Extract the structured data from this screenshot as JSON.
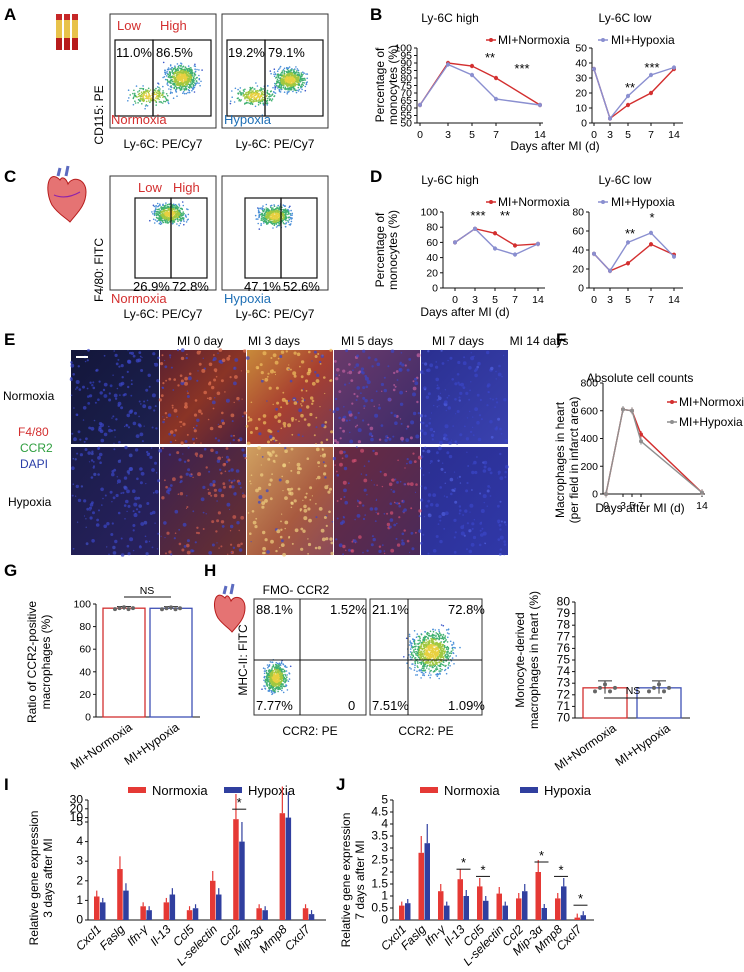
{
  "panels": {
    "A": "A",
    "B": "B",
    "C": "C",
    "D": "D",
    "E": "E",
    "F": "F",
    "G": "G",
    "H": "H",
    "I": "I",
    "J": "J"
  },
  "colors": {
    "normoxia": "#d32f2f",
    "hypoxia": "#3f51b5",
    "hypoxia_light": "#8a8fd0",
    "gray": "#8f8f8f"
  },
  "panelA": {
    "ylabel": "CD115: PE",
    "plots": [
      {
        "low_label": "Low",
        "high_label": "High",
        "low_pct": "11.0%",
        "high_pct": "86.5%",
        "condition": "Normoxia",
        "xlabel": "Ly-6C: PE/Cy7"
      },
      {
        "low_pct": "19.2%",
        "high_pct": "79.1%",
        "condition": "Hypoxia",
        "xlabel": "Ly-6C: PE/Cy7"
      }
    ]
  },
  "panelB": {
    "title_high": "Ly-6C high",
    "title_low": "Ly-6C low",
    "ylabel_line1": "Percentage of",
    "ylabel_line2": "monocytes (%)",
    "xlabel": "Days after MI (d)",
    "legend": [
      "MI+Normoxia",
      "MI+Hypoxia"
    ],
    "sig": [
      "**",
      "***",
      "**",
      "***"
    ]
  },
  "panelC": {
    "ylabel": "F4/80: FITC",
    "plots": [
      {
        "low_label": "Low",
        "high_label": "High",
        "low_pct": "26.9%",
        "high_pct": "72.8%",
        "condition": "Normoxia",
        "xlabel": "Ly-6C: PE/Cy7"
      },
      {
        "low_pct": "47.1%",
        "high_pct": "52.6%",
        "condition": "Hypoxia",
        "xlabel": "Ly-6C: PE/Cy7"
      }
    ]
  },
  "panelD": {
    "title_high": "Ly-6C high",
    "title_low": "Ly-6C low",
    "ylabel_line1": "Percentage of",
    "ylabel_line2": "monocytes (%)",
    "xlabel": "Days after MI (d)",
    "legend": [
      "MI+Normoxia",
      "MI+Hypoxia"
    ],
    "sig": [
      "***",
      "**",
      "**",
      "*"
    ]
  },
  "panelE": {
    "columns": [
      "MI 0 day",
      "MI 3 days",
      "MI 5 days",
      "MI 7 days",
      "MI 14 days"
    ],
    "rows": [
      "Normoxia",
      "Hypoxia"
    ],
    "stains": [
      "F4/80",
      "CCR2",
      "DAPI"
    ]
  },
  "panelF": {
    "title": "Absolute cell counts",
    "ylabel_line1": "Macrophages in heart",
    "ylabel_line2": "(per field in infarct area)",
    "xlabel": "Days after MI (d)",
    "legend": [
      "MI+Normoxia",
      "MI+Hypoxia"
    ]
  },
  "panelG": {
    "ylabel_line1": "Ratio of CCR2-positive",
    "ylabel_line2": "macrophages (%)",
    "sig": "NS"
  },
  "panelH": {
    "plots": [
      {
        "title": "FMO- CCR2",
        "q_tl": "88.1%",
        "q_tr": "1.52%",
        "q_bl": "7.77%",
        "q_br": "0",
        "xlabel": "CCR2: PE"
      },
      {
        "q_tl": "21.1%",
        "q_tr": "72.8%",
        "q_bl": "7.51%",
        "q_br": "1.09%",
        "xlabel": "CCR2: PE"
      }
    ],
    "ylabel": "MHC-II: FITC",
    "bar_ylabel_line1": "Monocyte-derived",
    "bar_ylabel_line2": "macrophages in heart (%)",
    "sig": "NS"
  },
  "panelI": {
    "legend": [
      "Normoxia",
      "Hypoxia"
    ],
    "ylabel_line1": "Relative gene expression",
    "ylabel_line2": "3 days after MI",
    "sig": "*"
  },
  "panelJ": {
    "legend": [
      "Normoxia",
      "Hypoxia"
    ],
    "ylabel_line1": "Relative gene expression",
    "ylabel_line2": "7 days after MI",
    "sig": "*"
  },
  "chart_data": [
    {
      "id": "B-high",
      "type": "line",
      "title": "Ly-6C high",
      "x": [
        0,
        3,
        5,
        7,
        14
      ],
      "ylim": [
        50,
        100
      ],
      "yticks": [
        50,
        55,
        60,
        65,
        70,
        75,
        80,
        85,
        90,
        95,
        100
      ],
      "series": [
        {
          "name": "MI+Normoxia",
          "values": [
            62,
            90,
            88,
            80,
            62
          ]
        },
        {
          "name": "MI+Hypoxia",
          "values": [
            62,
            89,
            82,
            66,
            62
          ]
        }
      ]
    },
    {
      "id": "B-low",
      "type": "line",
      "title": "Ly-6C low",
      "x": [
        0,
        3,
        5,
        7,
        14
      ],
      "ylim": [
        0,
        50
      ],
      "yticks": [
        0,
        10,
        20,
        30,
        40,
        50
      ],
      "series": [
        {
          "name": "MI+Normoxia",
          "values": [
            36,
            3,
            12,
            20,
            36
          ]
        },
        {
          "name": "MI+Hypoxia",
          "values": [
            36,
            3,
            18,
            32,
            37
          ]
        }
      ]
    },
    {
      "id": "D-high",
      "type": "line",
      "title": "Ly-6C high",
      "x": [
        0,
        3,
        5,
        7,
        14
      ],
      "ylim": [
        0,
        100
      ],
      "yticks": [
        0,
        20,
        40,
        60,
        80,
        100
      ],
      "series": [
        {
          "name": "MI+Normoxia",
          "values": [
            60,
            78,
            72,
            56,
            58
          ]
        },
        {
          "name": "MI+Hypoxia",
          "values": [
            60,
            78,
            52,
            44,
            58
          ]
        }
      ]
    },
    {
      "id": "D-low",
      "type": "line",
      "title": "Ly-6C low",
      "x": [
        0,
        3,
        5,
        7,
        14
      ],
      "ylim": [
        0,
        80
      ],
      "yticks": [
        0,
        20,
        40,
        60,
        80
      ],
      "series": [
        {
          "name": "MI+Normoxia",
          "values": [
            36,
            18,
            26,
            46,
            35
          ]
        },
        {
          "name": "MI+Hypoxia",
          "values": [
            36,
            18,
            48,
            58,
            33
          ]
        }
      ]
    },
    {
      "id": "F",
      "type": "line",
      "title": "Absolute cell counts",
      "x": [
        0,
        3,
        5,
        7,
        14
      ],
      "ylim": [
        0,
        800
      ],
      "yticks": [
        0,
        200,
        400,
        600,
        800
      ],
      "series": [
        {
          "name": "MI+Normoxia",
          "values": [
            0,
            610,
            600,
            430,
            10
          ]
        },
        {
          "name": "MI+Hypoxia",
          "values": [
            0,
            610,
            600,
            380,
            10
          ]
        }
      ]
    },
    {
      "id": "G",
      "type": "bar",
      "categories": [
        "MI+Normoxia",
        "MI+Hypoxia"
      ],
      "values": [
        96.3,
        96.2
      ],
      "ylim": [
        0,
        100
      ],
      "yticks": [
        0,
        20,
        40,
        60,
        80,
        100
      ]
    },
    {
      "id": "H-bar",
      "type": "bar",
      "categories": [
        "MI+Normoxia",
        "MI+Hypoxia"
      ],
      "values": [
        72.6,
        72.6
      ],
      "ylim": [
        70,
        80
      ],
      "yticks": [
        70,
        71,
        72,
        73,
        74,
        75,
        76,
        77,
        78,
        79,
        80
      ]
    },
    {
      "id": "I",
      "type": "bar",
      "categories": [
        "Cxcl1",
        "Faslg",
        "Ifn-γ",
        "Il-13",
        "Ccl5",
        "L-selectin",
        "Ccl2",
        "Mip-3α",
        "Mmp8",
        "Cxcl7"
      ],
      "yticks": [
        "0",
        "1",
        "2",
        "3",
        "4",
        "5",
        "10",
        "20",
        "30"
      ],
      "series": [
        {
          "name": "Normoxia",
          "values": [
            1.2,
            2.6,
            0.7,
            0.9,
            0.5,
            2.0,
            8.2,
            0.6,
            15,
            0.6
          ]
        },
        {
          "name": "Hypoxia",
          "values": [
            0.9,
            1.5,
            0.5,
            1.3,
            0.6,
            1.3,
            4.0,
            0.5,
            10,
            0.3
          ]
        }
      ]
    },
    {
      "id": "J",
      "type": "bar",
      "categories": [
        "Cxcl1",
        "Faslg",
        "Ifn-γ",
        "Il-13",
        "Ccl5",
        "L-selectin",
        "Ccl2",
        "Mip-3α",
        "Mmp8",
        "Cxcl7"
      ],
      "ylim": [
        0,
        5
      ],
      "yticks": [
        0,
        0.5,
        1,
        1.5,
        2,
        2.5,
        3,
        3.5,
        4,
        4.5,
        5
      ],
      "series": [
        {
          "name": "Normoxia",
          "values": [
            0.6,
            2.8,
            1.2,
            1.7,
            1.4,
            1.1,
            0.9,
            2.0,
            0.9,
            0.1
          ]
        },
        {
          "name": "Hypoxia",
          "values": [
            0.7,
            3.2,
            0.6,
            1.0,
            0.8,
            0.6,
            1.2,
            0.5,
            1.4,
            0.2
          ]
        }
      ]
    }
  ]
}
